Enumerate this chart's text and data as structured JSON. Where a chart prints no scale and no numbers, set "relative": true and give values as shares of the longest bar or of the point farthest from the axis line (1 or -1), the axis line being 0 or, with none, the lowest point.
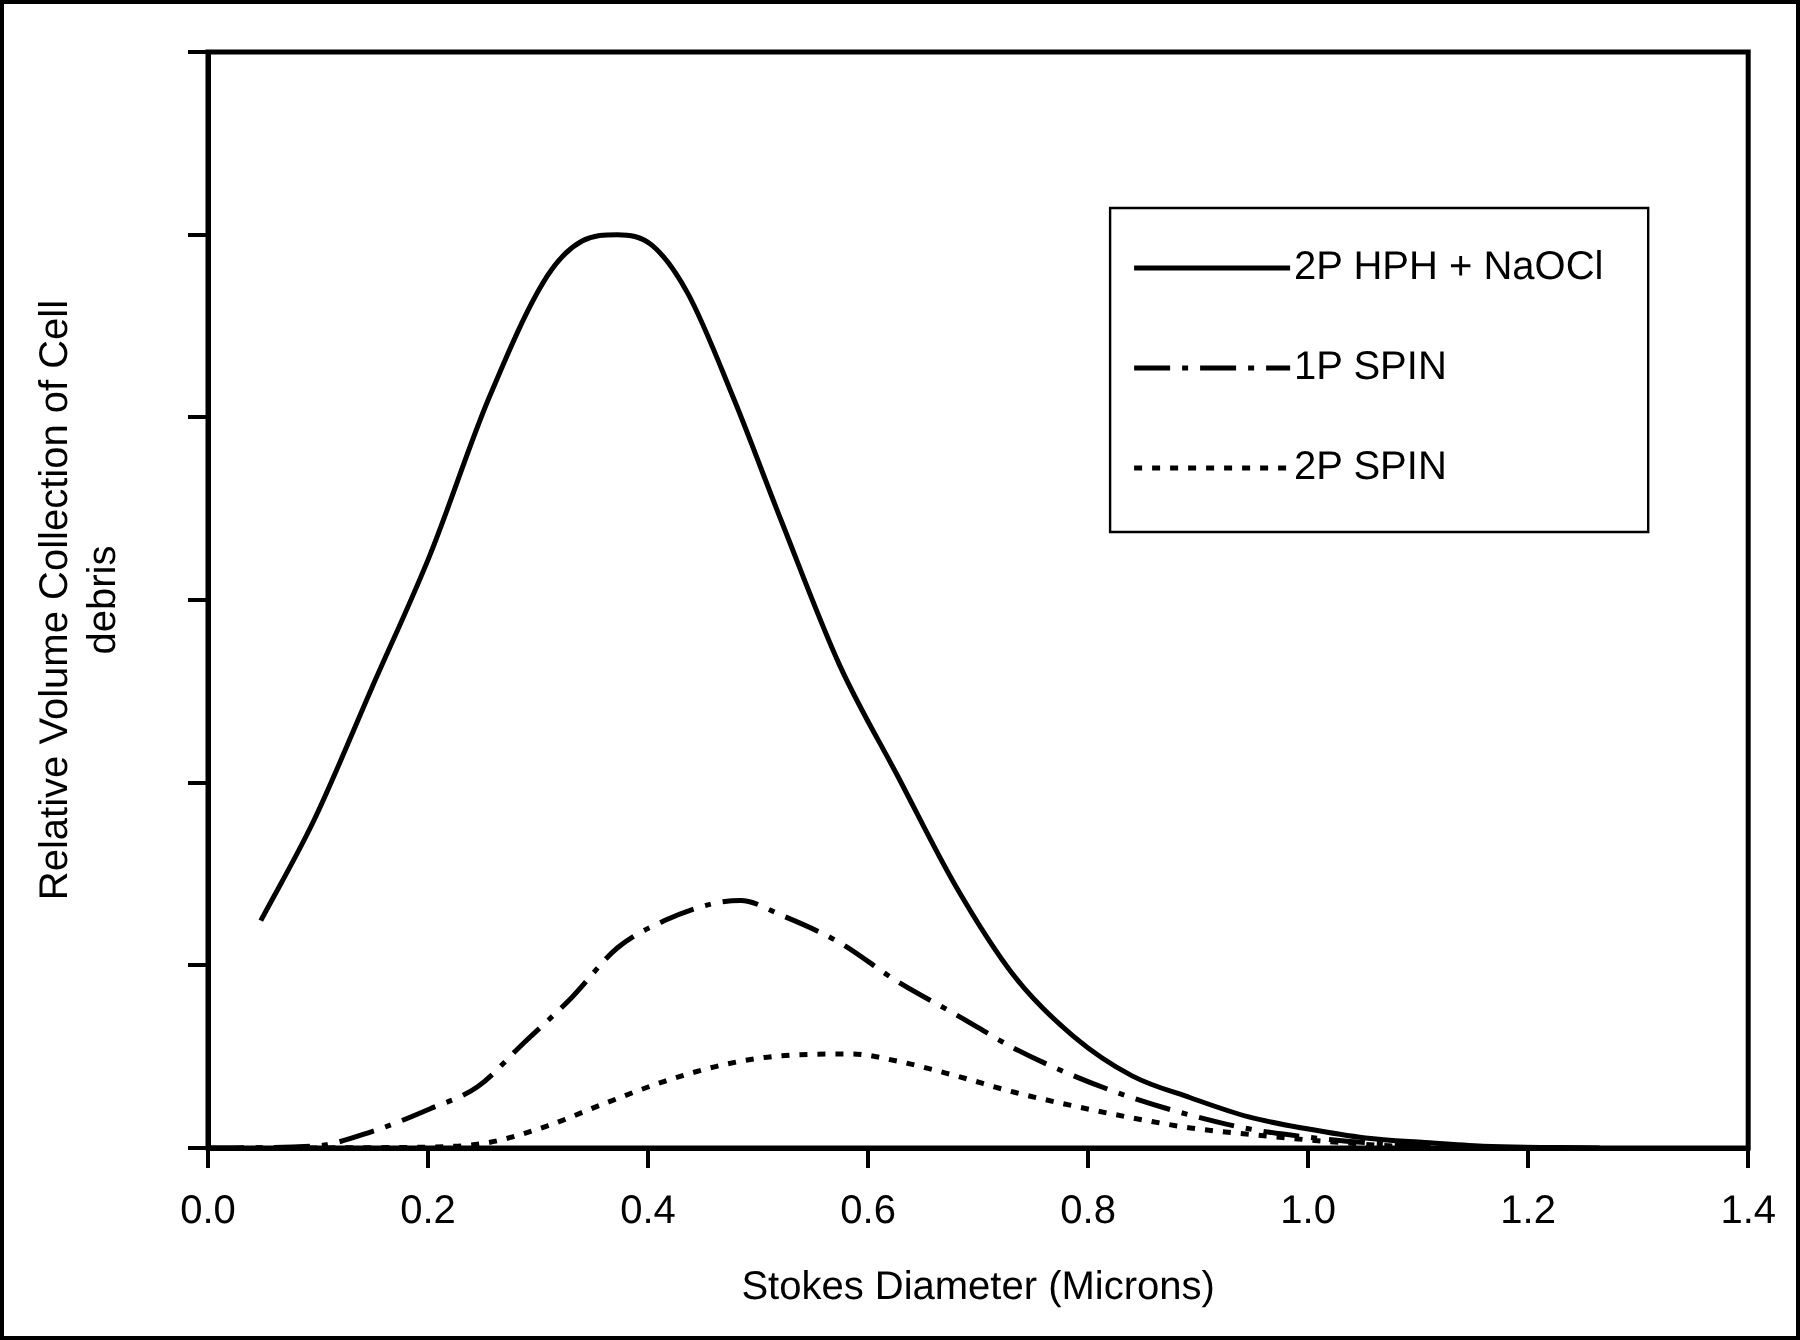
{
  "chart_data": {
    "type": "line",
    "relative": true,
    "xlabel": "Stokes Diameter (Microns)",
    "ylabel": "Relative Volume Collection of Cell debris",
    "xlim": [
      0,
      1.4
    ],
    "xticks": [
      {
        "value": 0,
        "label": "0.0"
      },
      {
        "value": 0.2,
        "label": "0.2"
      },
      {
        "value": 0.4,
        "label": "0.4"
      },
      {
        "value": 0.6,
        "label": "0.6"
      },
      {
        "value": 0.8,
        "label": "0.8"
      },
      {
        "value": 1,
        "label": "1.0"
      },
      {
        "value": 1.2,
        "label": "1.2"
      },
      {
        "value": 1.4,
        "label": "1.4"
      }
    ],
    "grid": false,
    "legend": "top right",
    "marker": "none",
    "series": [
      {
        "name": "2P HPH + NaOCl",
        "color": "#000000",
        "line_style": "solid",
        "x": [
          0.048,
          0.096,
          0.149,
          0.202,
          0.255,
          0.308,
          0.34,
          0.372,
          0.404,
          0.436,
          0.478,
          0.521,
          0.574,
          0.627,
          0.68,
          0.733,
          0.787,
          0.84,
          0.893,
          0.946,
          0.999,
          1.052,
          1.106,
          1.159,
          1.265
        ],
        "values": [
          0.249,
          0.358,
          0.504,
          0.65,
          0.82,
          0.954,
          0.993,
          1.0,
          0.988,
          0.936,
          0.82,
          0.687,
          0.529,
          0.407,
          0.286,
          0.188,
          0.122,
          0.079,
          0.055,
          0.034,
          0.021,
          0.011,
          0.006,
          0.002,
          0
        ]
      },
      {
        "name": "1P SPIN",
        "color": "#000000",
        "line_style": "dashed",
        "x": [
          0,
          0.096,
          0.149,
          0.202,
          0.245,
          0.287,
          0.33,
          0.372,
          0.415,
          0.457,
          0.484,
          0.521,
          0.574,
          0.627,
          0.68,
          0.733,
          0.787,
          0.84,
          0.893,
          0.946,
          0.999,
          1.052,
          1.159
        ],
        "values": [
          0,
          0.002,
          0.018,
          0.043,
          0.067,
          0.115,
          0.164,
          0.219,
          0.249,
          0.267,
          0.271,
          0.255,
          0.225,
          0.182,
          0.146,
          0.109,
          0.079,
          0.055,
          0.036,
          0.021,
          0.012,
          0.006,
          0
        ]
      },
      {
        "name": "2P SPIN",
        "color": "#000000",
        "line_style": "dotted",
        "x": [
          0.043,
          0.202,
          0.255,
          0.308,
          0.361,
          0.415,
          0.468,
          0.521,
          0.585,
          0.627,
          0.68,
          0.733,
          0.787,
          0.84,
          0.893,
          0.946,
          0.999,
          1.052,
          1.106
        ],
        "values": [
          0,
          0.001,
          0.006,
          0.024,
          0.049,
          0.073,
          0.091,
          0.101,
          0.103,
          0.095,
          0.079,
          0.061,
          0.046,
          0.033,
          0.022,
          0.015,
          0.009,
          0.004,
          0
        ]
      }
    ]
  }
}
